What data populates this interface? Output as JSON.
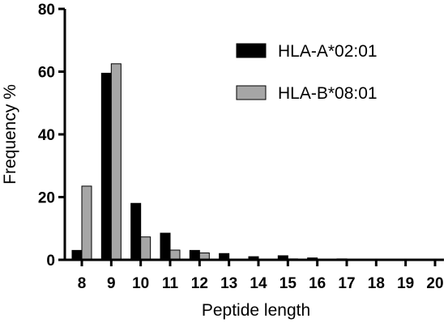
{
  "chart_data": {
    "type": "bar",
    "categories": [
      "8",
      "9",
      "10",
      "11",
      "12",
      "13",
      "14",
      "15",
      "16",
      "17",
      "18",
      "19",
      "20"
    ],
    "series": [
      {
        "name": "HLA-A*02:01",
        "color": "#000000",
        "values": [
          3.0,
          59.5,
          18.0,
          8.5,
          3.0,
          2.0,
          1.0,
          1.3,
          0.6,
          0.3,
          0.0,
          0.0,
          0.0
        ]
      },
      {
        "name": "HLA-B*08:01",
        "color": "#a6a6a6",
        "values": [
          23.5,
          62.5,
          7.3,
          3.1,
          2.2,
          0.2,
          0.2,
          0.3,
          0.2,
          0.1,
          0.0,
          0.0,
          0.0
        ]
      }
    ],
    "xlabel": "Peptide length",
    "ylabel": "Frequency %",
    "ylim": [
      0,
      80
    ],
    "yticks": [
      0,
      20,
      40,
      60,
      80
    ],
    "grid": false,
    "legend": "top-right"
  }
}
